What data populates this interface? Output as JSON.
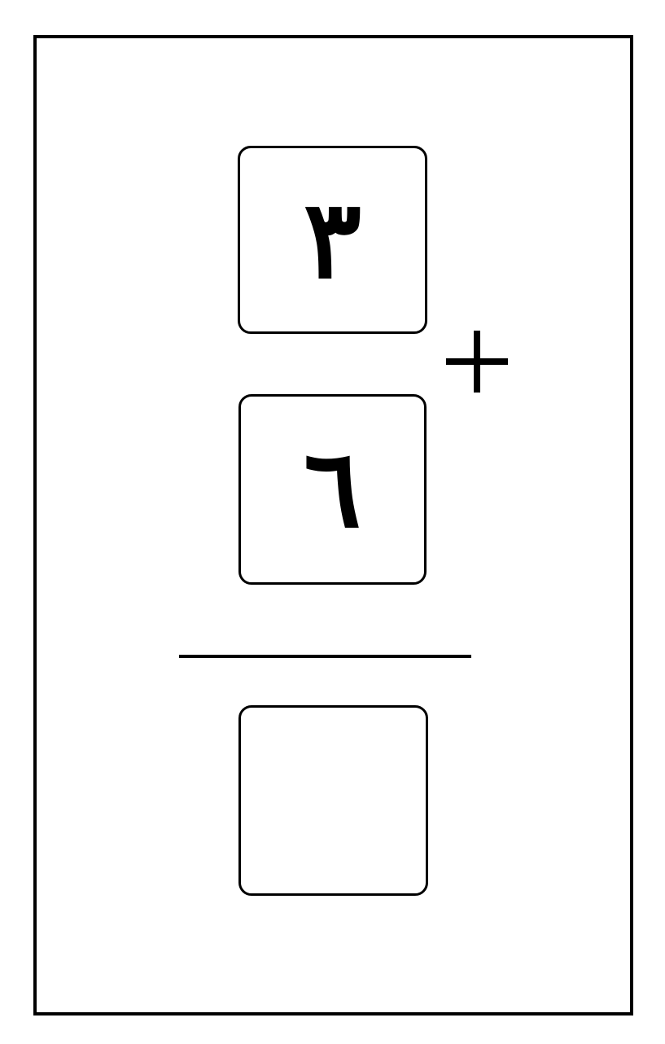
{
  "problem": {
    "addend_top": "٣",
    "addend_bottom": "٦",
    "operator": "plus-icon",
    "answer": ""
  }
}
